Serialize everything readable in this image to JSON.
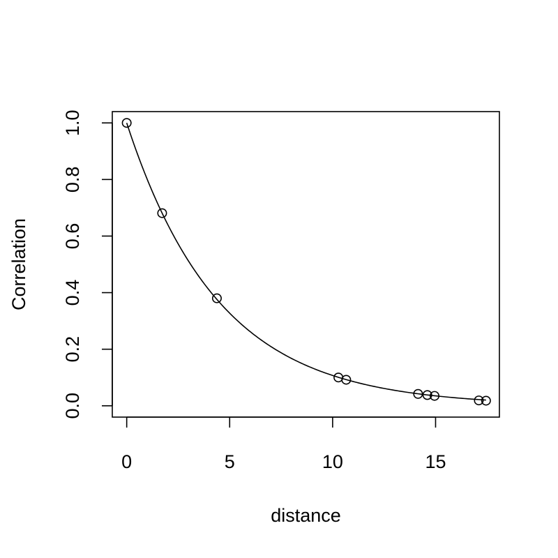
{
  "chart_data": {
    "type": "scatter",
    "title": "",
    "xlabel": "distance",
    "ylabel": "Correlation",
    "xlim": [
      -0.7,
      18.1
    ],
    "ylim": [
      -0.04,
      1.04
    ],
    "x_ticks": [
      0,
      5,
      10,
      15
    ],
    "x_tick_labels": [
      "0",
      "5",
      "10",
      "15"
    ],
    "y_ticks": [
      0.0,
      0.2,
      0.4,
      0.6,
      0.8,
      1.0
    ],
    "y_tick_labels": [
      "0.0",
      "0.2",
      "0.4",
      "0.6",
      "0.8",
      "1.0"
    ],
    "grid": false,
    "points": {
      "x": [
        0,
        1.72,
        4.38,
        10.28,
        10.66,
        14.15,
        14.6,
        14.95,
        17.1,
        17.45
      ],
      "y": [
        1.0,
        0.681,
        0.38,
        0.1,
        0.092,
        0.042,
        0.038,
        0.035,
        0.019,
        0.018
      ],
      "marker": "open-circle"
    },
    "fitted_curve": {
      "formula": "exp(-0.2233 * distance)",
      "rate": 0.2233,
      "x_range": [
        0,
        17.45
      ]
    },
    "colors": {
      "ink": "#000000",
      "background": "#ffffff"
    }
  }
}
